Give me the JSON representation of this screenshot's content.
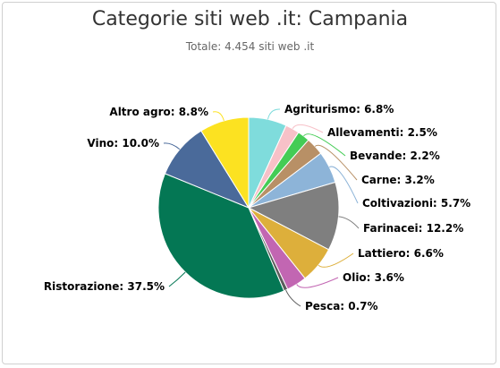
{
  "chart_data": {
    "type": "pie",
    "title": "Categorie siti web .it: Campania",
    "subtitle": "Totale: 4.454 siti web .it",
    "slices": [
      {
        "name": "Agriturismo",
        "value": 6.8,
        "label": "Agriturismo: 6.8%",
        "color": "#7fdcdc"
      },
      {
        "name": "Allevamenti",
        "value": 2.5,
        "label": "Allevamenti: 2.5%",
        "color": "#f7c1c8"
      },
      {
        "name": "Bevande",
        "value": 2.2,
        "label": "Bevande: 2.2%",
        "color": "#44cc55"
      },
      {
        "name": "Carne",
        "value": 3.2,
        "label": "Carne: 3.2%",
        "color": "#b89066"
      },
      {
        "name": "Coltivazioni",
        "value": 5.7,
        "label": "Coltivazioni: 5.7%",
        "color": "#8db4d8"
      },
      {
        "name": "Farinacei",
        "value": 12.2,
        "label": "Farinacei: 12.2%",
        "color": "#7f7f7f"
      },
      {
        "name": "Lattiero",
        "value": 6.6,
        "label": "Lattiero: 6.6%",
        "color": "#ddaf3b"
      },
      {
        "name": "Olio",
        "value": 3.6,
        "label": "Olio: 3.6%",
        "color": "#c266b2"
      },
      {
        "name": "Pesca",
        "value": 0.7,
        "label": "Pesca: 0.7%",
        "color": "#5c5c5c"
      },
      {
        "name": "Ristorazione",
        "value": 37.5,
        "label": "Ristorazione: 37.5%",
        "color": "#047754"
      },
      {
        "name": "Vino",
        "value": 10.0,
        "label": "Vino: 10.0%",
        "color": "#4a6a9a"
      },
      {
        "name": "Altro agro",
        "value": 8.8,
        "label": "Altro agro: 8.8%",
        "color": "#fce221"
      }
    ]
  }
}
